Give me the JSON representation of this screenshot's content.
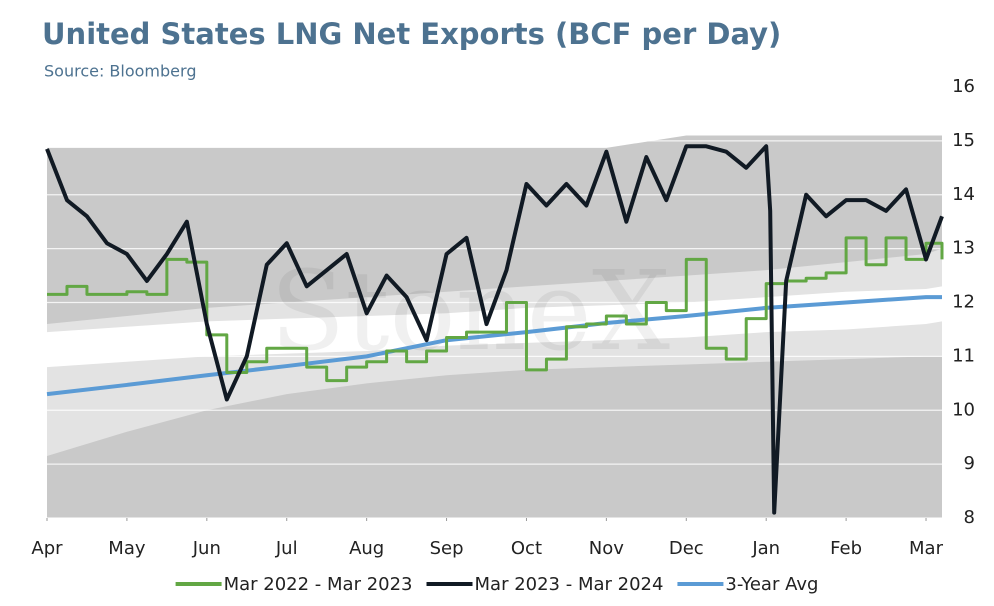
{
  "chart_data": {
    "type": "line",
    "title": "United States LNG Net Exports (BCF per Day)",
    "subtitle": "Source: Bloomberg",
    "watermark": "StoneX",
    "xlim": [
      0,
      11.2
    ],
    "xticks": [
      {
        "value": 0,
        "label": "Apr"
      },
      {
        "value": 1,
        "label": "May"
      },
      {
        "value": 2,
        "label": "Jun"
      },
      {
        "value": 3,
        "label": "Jul"
      },
      {
        "value": 4,
        "label": "Aug"
      },
      {
        "value": 5,
        "label": "Sep"
      },
      {
        "value": 6,
        "label": "Oct"
      },
      {
        "value": 7,
        "label": "Nov"
      },
      {
        "value": 8,
        "label": "Dec"
      },
      {
        "value": 9,
        "label": "Jan"
      },
      {
        "value": 10,
        "label": "Feb"
      },
      {
        "value": 11,
        "label": "Mar"
      }
    ],
    "ylim": [
      8,
      16
    ],
    "yticks": [
      8,
      9,
      10,
      11,
      12,
      13,
      14,
      15,
      16
    ],
    "grid": true,
    "grid_color": "#ffffff",
    "bands": [
      {
        "color": "#c9c9c9",
        "x": [
          0,
          7,
          8,
          11.2
        ],
        "upper": [
          14.87,
          14.87,
          15.1,
          15.1
        ]
      },
      {
        "color": "#e3e3e3",
        "x": [
          0,
          1,
          2,
          3,
          4,
          5,
          6,
          7,
          8,
          9,
          10,
          11,
          11.2
        ],
        "lower": [
          9.15,
          9.6,
          10.0,
          10.3,
          10.5,
          10.65,
          10.75,
          10.8,
          10.85,
          10.9,
          10.95,
          11.0,
          11.0
        ],
        "upper": [
          11.6,
          11.75,
          11.9,
          12.0,
          12.1,
          12.2,
          12.3,
          12.4,
          12.5,
          12.6,
          12.75,
          12.9,
          13.0
        ]
      },
      {
        "color": "#ffffff",
        "x": [
          0,
          1,
          2,
          3,
          4,
          5,
          6,
          7,
          8,
          9,
          10,
          11,
          11.2
        ],
        "lower": [
          10.8,
          10.9,
          11.0,
          11.05,
          11.1,
          11.2,
          11.25,
          11.3,
          11.35,
          11.45,
          11.5,
          11.6,
          11.65
        ],
        "upper": [
          11.45,
          11.55,
          11.65,
          11.7,
          11.75,
          11.8,
          11.9,
          11.95,
          12.0,
          12.1,
          12.2,
          12.25,
          12.3
        ]
      }
    ],
    "series": [
      {
        "name": "Mar 2022 - Mar 2023",
        "color": "#62a744",
        "step": true,
        "x": [
          0,
          0.25,
          0.5,
          0.75,
          1,
          1.25,
          1.5,
          1.75,
          2,
          2.25,
          2.5,
          2.75,
          3,
          3.25,
          3.5,
          3.75,
          4,
          4.25,
          4.5,
          4.75,
          5,
          5.25,
          5.5,
          5.75,
          6,
          6.25,
          6.5,
          6.75,
          7,
          7.25,
          7.5,
          7.75,
          8,
          8.25,
          8.5,
          8.75,
          9,
          9.25,
          9.5,
          9.75,
          10,
          10.25,
          10.5,
          10.75,
          11,
          11.2
        ],
        "values": [
          12.15,
          12.3,
          12.15,
          12.15,
          12.2,
          12.15,
          12.8,
          12.75,
          11.4,
          10.7,
          10.9,
          11.15,
          11.15,
          10.8,
          10.55,
          10.8,
          10.9,
          11.1,
          10.9,
          11.1,
          11.35,
          11.45,
          11.45,
          12.0,
          10.75,
          10.95,
          11.55,
          11.6,
          11.75,
          11.6,
          12.0,
          11.85,
          12.8,
          11.15,
          10.95,
          11.7,
          12.35,
          12.4,
          12.45,
          12.55,
          13.2,
          12.7,
          13.2,
          12.8,
          13.1,
          12.8
        ]
      },
      {
        "name": "Mar 2023 - Mar 2024",
        "color": "#111a24",
        "x": [
          0,
          0.25,
          0.5,
          0.75,
          1,
          1.25,
          1.5,
          1.75,
          2,
          2.25,
          2.5,
          2.75,
          3,
          3.25,
          3.5,
          3.75,
          4,
          4.25,
          4.5,
          4.75,
          5,
          5.25,
          5.5,
          5.75,
          6,
          6.25,
          6.5,
          6.75,
          7,
          7.25,
          7.5,
          7.75,
          8,
          8.25,
          8.5,
          8.75,
          9,
          9.05,
          9.1,
          9.25,
          9.5,
          9.75,
          10,
          10.25,
          10.5,
          10.75,
          11,
          11.2
        ],
        "values": [
          14.85,
          13.9,
          13.6,
          13.1,
          12.9,
          12.4,
          12.9,
          13.5,
          11.6,
          10.2,
          11.0,
          12.7,
          13.1,
          12.3,
          12.6,
          12.9,
          11.8,
          12.5,
          12.1,
          11.3,
          12.9,
          13.2,
          11.6,
          12.6,
          14.2,
          13.8,
          14.2,
          13.8,
          14.8,
          13.5,
          14.7,
          13.9,
          14.9,
          14.9,
          14.8,
          14.5,
          14.9,
          13.7,
          8.1,
          12.4,
          14.0,
          13.6,
          13.9,
          13.9,
          13.7,
          14.1,
          12.8,
          13.6
        ]
      },
      {
        "name": "3-Year Avg",
        "color": "#5b9bd5",
        "x": [
          0,
          1,
          2,
          3,
          4,
          5,
          6,
          7,
          8,
          9,
          10,
          11,
          11.2
        ],
        "values": [
          10.3,
          10.47,
          10.65,
          10.82,
          11.0,
          11.3,
          11.45,
          11.62,
          11.75,
          11.9,
          12.0,
          12.1,
          12.1
        ]
      }
    ]
  }
}
